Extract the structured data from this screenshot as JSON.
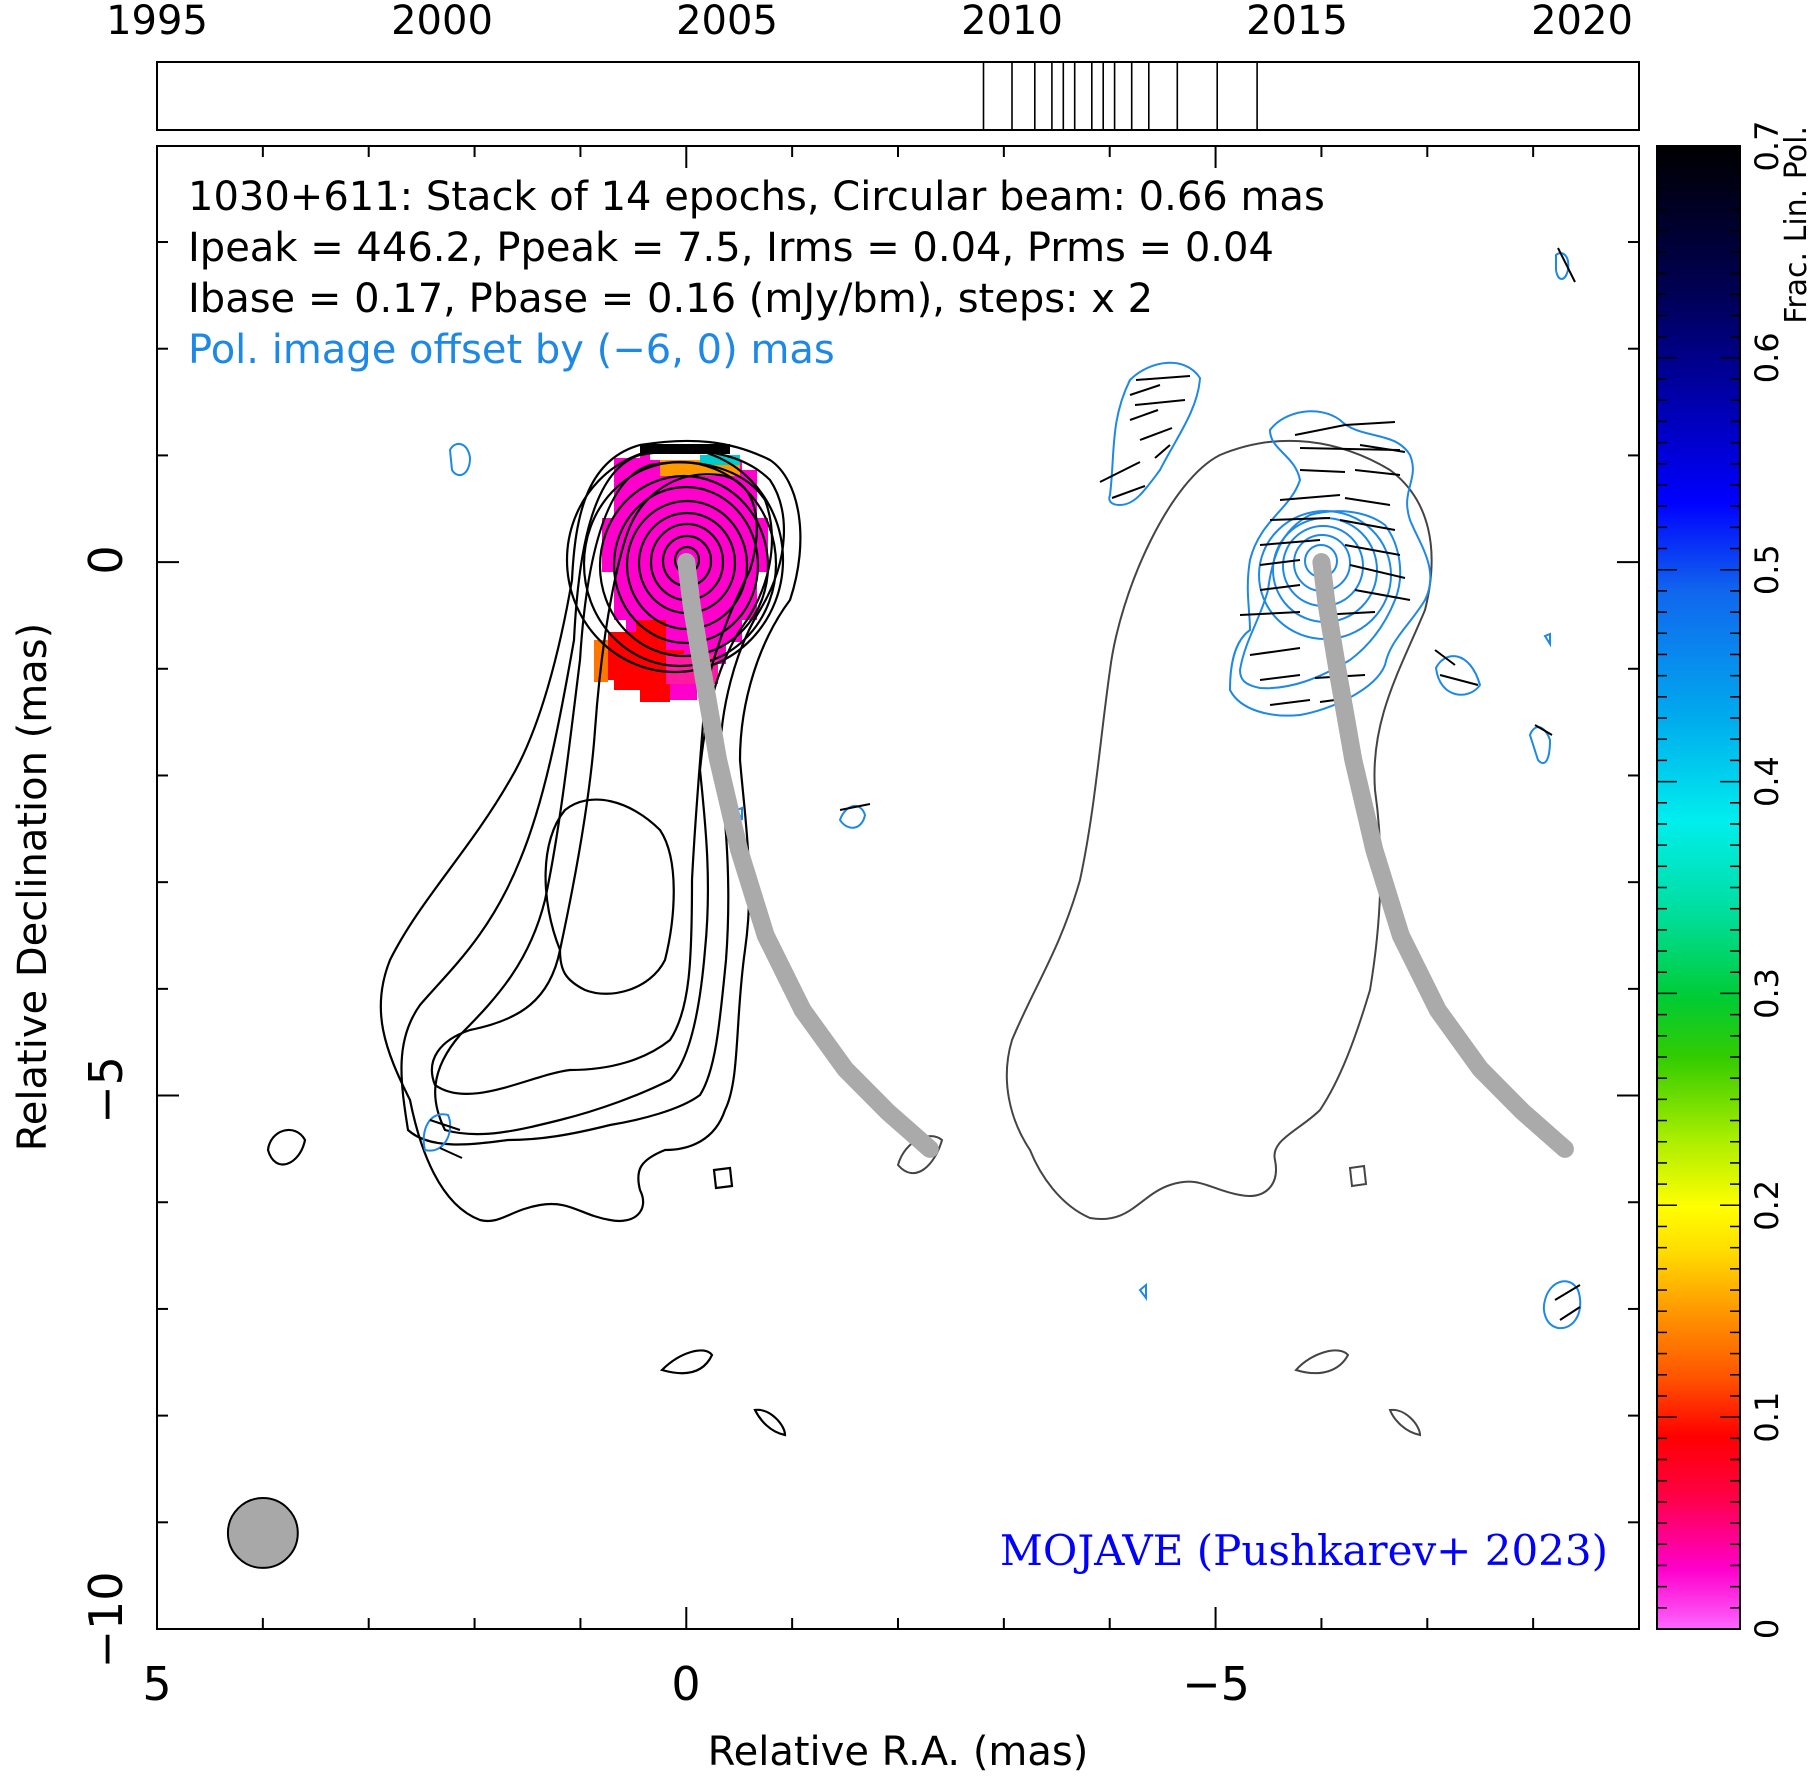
{
  "chart_data": {
    "type": "contour",
    "timeline": {
      "tick_labels": [
        "1995",
        "2000",
        "2005",
        "2010",
        "2015",
        "2020"
      ],
      "range": [
        1995,
        2021
      ],
      "epochs": [
        2009.5,
        2010.0,
        2010.4,
        2010.7,
        2010.9,
        2011.1,
        2011.4,
        2011.6,
        2011.8,
        2012.1,
        2012.4,
        2012.9,
        2013.6,
        2014.3
      ]
    },
    "annotations": {
      "line1": "1030+611: Stack of 14 epochs, Circular beam: 0.66 mas",
      "line2": "Ipeak = 446.2, Ppeak = 7.5, Irms = 0.04, Prms = 0.04",
      "line3": "Ibase = 0.17, Pbase = 0.16 (mJy/bm), steps: x 2",
      "line4": "Pol. image offset by (−6, 0) mas",
      "credit": "MOJAVE (Pushkarev+ 2023)"
    },
    "xlabel": "Relative R.A. (mas)",
    "ylabel": "Relative Declination (mas)",
    "xlim": [
      5,
      -9
    ],
    "ylim": [
      -10,
      3.9
    ],
    "x_ticks": [
      "5",
      "0",
      "−5"
    ],
    "y_ticks": [
      "0",
      "−5",
      "−10"
    ],
    "beam": {
      "x": 4.0,
      "y": -9.1,
      "diameter": 0.66
    },
    "ridge_line": [
      [
        -2.3,
        -5.5
      ],
      [
        -1.9,
        -5.15
      ],
      [
        -1.5,
        -4.75
      ],
      [
        -1.1,
        -4.2
      ],
      [
        -0.75,
        -3.5
      ],
      [
        -0.5,
        -2.7
      ],
      [
        -0.3,
        -1.85
      ],
      [
        -0.15,
        -1.0
      ],
      [
        -0.05,
        -0.4
      ],
      [
        0.0,
        0.0
      ]
    ],
    "colorbar": {
      "label": "Frac. Lin. Pol.",
      "range": [
        0,
        0.7
      ],
      "tick_labels": [
        "0",
        "0.1",
        "0.2",
        "0.3",
        "0.4",
        "0.5",
        "0.6",
        "0.7"
      ]
    },
    "colors": {
      "total_intensity_contour": "#000000",
      "polarized_contour": "#1e88e5",
      "ridge_line": "#aaaaaa",
      "stokes_i_offset_contour": "#444444",
      "credit_text": "#0000ff",
      "pol_offset_text": "#1e88e5"
    }
  }
}
